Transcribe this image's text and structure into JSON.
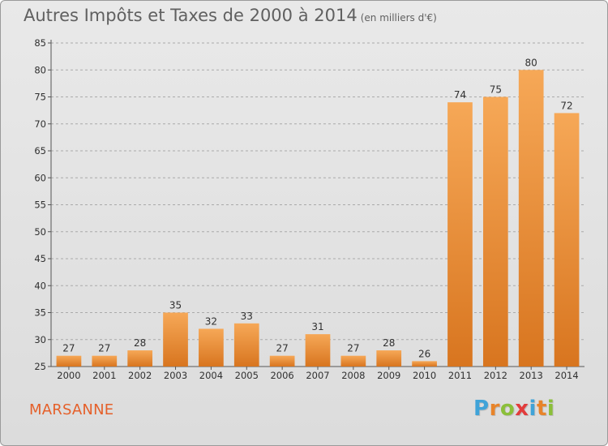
{
  "header": {
    "title": "Autres Impôts et Taxes de 2000 à 2014",
    "subtitle": "(en milliers d'€)"
  },
  "footer": {
    "commune": "MARSANNE",
    "logo": {
      "letters": [
        "P",
        "r",
        "o",
        "x",
        "i",
        "t",
        "i"
      ],
      "colors": [
        "#3fa3d8",
        "#e8842a",
        "#8bbf3a",
        "#e23c3c",
        "#3fa3d8",
        "#e8842a",
        "#8bbf3a"
      ]
    }
  },
  "colors": {
    "bar_light": "#f6a857",
    "bar_dark": "#d8751f",
    "grid": "#aaaaaa",
    "commune_text": "#e5602a"
  },
  "chart_data": {
    "type": "bar",
    "title": "Autres Impôts et Taxes de 2000 à 2014",
    "subtitle": "(en milliers d'€)",
    "categories": [
      "2000",
      "2001",
      "2002",
      "2003",
      "2004",
      "2005",
      "2006",
      "2007",
      "2008",
      "2009",
      "2010",
      "2011",
      "2012",
      "2013",
      "2014"
    ],
    "values": [
      27,
      27,
      28,
      35,
      32,
      33,
      27,
      31,
      27,
      28,
      26,
      74,
      75,
      80,
      72
    ],
    "ylim": [
      25,
      85
    ],
    "yticks": [
      25,
      30,
      35,
      40,
      45,
      50,
      55,
      60,
      65,
      70,
      75,
      80,
      85
    ],
    "grid": true,
    "legend": "none"
  }
}
